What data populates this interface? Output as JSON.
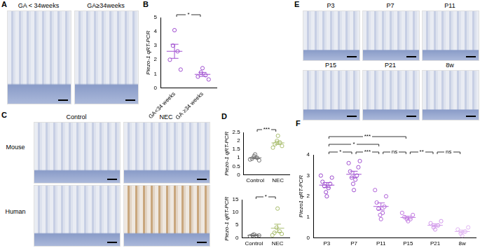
{
  "panels": [
    {
      "letter": "A",
      "images": [
        "GA < 34weeks",
        "GA≥34weeks"
      ]
    },
    {
      "letter": "C",
      "columns": [
        "Control",
        "NEC"
      ],
      "rows": [
        "Mouse",
        "Human"
      ]
    },
    {
      "letter": "E",
      "images": [
        "P3",
        "P7",
        "P11",
        "P15",
        "P21",
        "8w"
      ]
    }
  ],
  "chart_data": [
    {
      "panel": "B",
      "type": "scatter",
      "y_label": "Piezo-1 qRT-PCR",
      "categories": [
        "GA<34 weeks",
        "GA ≥34 weeks"
      ],
      "colors": [
        "#a04fd0",
        "#a04fd0"
      ],
      "values": [
        [
          4.1,
          3.0,
          2.6,
          2.0,
          1.3
        ],
        [
          1.4,
          1.1,
          0.9,
          0.8,
          0.6
        ]
      ],
      "mean": [
        2.6,
        0.96
      ],
      "sem": [
        0.5,
        0.14
      ],
      "comparisons": [
        {
          "from": "GA<34 weeks",
          "to": "GA ≥34 weeks",
          "label": "*"
        }
      ],
      "ylim": [
        0,
        5
      ],
      "yticks": [
        0,
        1,
        2,
        3,
        4,
        5
      ],
      "grid": false
    },
    {
      "panel": "D",
      "type": "scatter",
      "y_label": "Piezo-1 qRT-PCR",
      "categories": [
        "Control",
        "NEC"
      ],
      "colors": [
        "#707070",
        "#a9bd6e"
      ],
      "values": [
        [
          1.2,
          1.1,
          1.0,
          0.95,
          0.85,
          0.9
        ],
        [
          2.3,
          2.0,
          1.9,
          1.8,
          1.7,
          1.6
        ]
      ],
      "mean": [
        1.0,
        1.88
      ],
      "sem": [
        0.05,
        0.1
      ],
      "comparisons": [
        {
          "from": "Control",
          "to": "NEC",
          "label": "***"
        }
      ],
      "ylim": [
        0,
        2.5
      ],
      "yticks": [
        0,
        0.5,
        1,
        1.5,
        2,
        2.5
      ],
      "grid": false
    },
    {
      "type": "scatter",
      "y_label": "Piezo-1 qRT-PCR",
      "categories": [
        "Control",
        "NEC"
      ],
      "colors": [
        "#707070",
        "#a9bd6e"
      ],
      "values": [
        [
          1.3,
          1.0,
          0.8,
          0.6,
          0.9
        ],
        [
          11.5,
          4.0,
          2.5,
          2.0,
          1.5,
          1.0
        ]
      ],
      "mean": [
        0.92,
        3.75
      ],
      "sem": [
        0.12,
        1.6
      ],
      "comparisons": [
        {
          "from": "Control",
          "to": "NEC",
          "label": "*"
        }
      ],
      "ylim": [
        0,
        15
      ],
      "yticks": [
        0,
        5,
        10,
        15
      ],
      "grid": false
    },
    {
      "panel": "F",
      "type": "scatter",
      "y_label": "Piezo1 qRT-PCR",
      "categories": [
        "P3",
        "P7",
        "P11",
        "P15",
        "P21",
        "8w"
      ],
      "colors": [
        "#9a45cc",
        "#a04fd0",
        "#b062d8",
        "#c078e0",
        "#d096ea",
        "#e0b4f2"
      ],
      "values": [
        [
          2.0,
          2.2,
          2.4,
          2.5,
          2.6,
          2.7,
          2.9,
          3.0
        ],
        [
          2.3,
          2.6,
          2.8,
          2.9,
          3.0,
          3.2,
          3.4,
          3.6,
          3.7
        ],
        [
          0.9,
          1.1,
          1.2,
          1.4,
          1.5,
          1.7,
          2.0,
          2.3
        ],
        [
          0.8,
          0.9,
          0.9,
          1.0,
          1.1,
          1.2
        ],
        [
          0.4,
          0.5,
          0.6,
          0.7,
          0.8
        ],
        [
          0.1,
          0.2,
          0.3,
          0.4,
          0.5
        ]
      ],
      "mean": [
        2.54,
        3.06,
        1.51,
        0.98,
        0.6,
        0.3
      ],
      "sem": [
        0.12,
        0.15,
        0.17,
        0.06,
        0.07,
        0.07
      ],
      "comparisons": [
        {
          "from": "P3",
          "to": "P7",
          "label": "*"
        },
        {
          "from": "P7",
          "to": "P11",
          "label": "***"
        },
        {
          "from": "P11",
          "to": "P15",
          "label": "ns"
        },
        {
          "from": "P15",
          "to": "P21",
          "label": "**"
        },
        {
          "from": "P21",
          "to": "8w",
          "label": "ns"
        },
        {
          "from": "P3",
          "to": "P11",
          "label": "*"
        },
        {
          "from": "P3",
          "to": "P15",
          "label": "***"
        }
      ],
      "ylim": [
        0,
        4
      ],
      "yticks": [
        0,
        1,
        2,
        3,
        4
      ],
      "grid": false
    }
  ]
}
